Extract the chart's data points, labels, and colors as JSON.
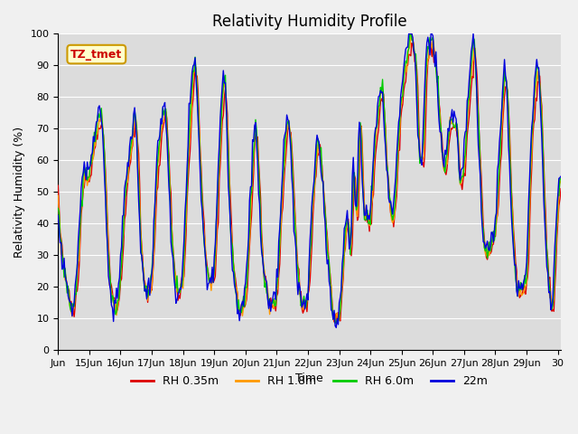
{
  "title": "Relativity Humidity Profile",
  "xlabel": "Time",
  "ylabel": "Relativity Humidity (%)",
  "ylim": [
    0,
    100
  ],
  "annotation_text": "TZ_tmet",
  "annotation_color": "#cc0000",
  "annotation_bg": "#ffffcc",
  "annotation_border": "#cc9900",
  "bg_color": "#dcdcdc",
  "legend_entries": [
    "RH 0.35m",
    "RH 1.8m",
    "RH 6.0m",
    "22m"
  ],
  "legend_colors": [
    "#dd0000",
    "#ff9900",
    "#00cc00",
    "#0000dd"
  ],
  "xtick_labels": [
    "Jun",
    "15Jun",
    "16Jun",
    "17Jun",
    "18Jun",
    "19Jun",
    "20Jun",
    "21Jun",
    "22Jun",
    "23Jun",
    "24Jun",
    "25Jun",
    "26Jun",
    "27Jun",
    "28Jun",
    "29Jun",
    "30"
  ],
  "title_fontsize": 12,
  "axis_fontsize": 9,
  "tick_fontsize": 8,
  "n_days": 16
}
